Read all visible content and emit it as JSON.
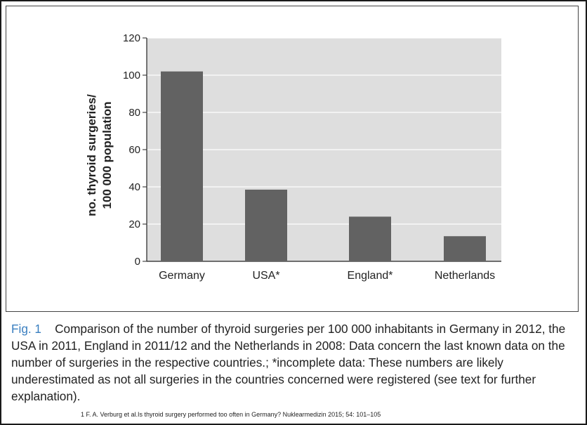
{
  "chart_data": {
    "type": "bar",
    "categories": [
      "Germany",
      "USA*",
      "England*",
      "Netherlands"
    ],
    "values": [
      102,
      38.5,
      24,
      13.5
    ],
    "ylabel_lines": [
      "no. thyroid surgeries/",
      "100 000 population"
    ],
    "yticks": [
      "0",
      "20",
      "40",
      "60",
      "80",
      "100",
      "120"
    ],
    "ylim": [
      0,
      120
    ],
    "grid": true,
    "colors": {
      "bar": "#626262",
      "plot_bg": "#dedede",
      "grid": "#ffffff"
    }
  },
  "caption": {
    "label": "Fig. 1",
    "text": "Comparison of the number of thyroid surgeries per 100 000 inhabitants in Germany in 2012, the USA in 2011, England in 2011/12 and the Netherlands in 2008: Data concern the last known data on the number of surgeries in the respective countries.; *incomplete data: These numbers are likely underestimated as not all surgeries in the countries concerned were registered (see text for further explanation)."
  },
  "footnote": "1 F. A. Verburg et al.Is thyroid surgery performed too often in Germany? Nuklearmedizin 2015; 54: 101–105"
}
